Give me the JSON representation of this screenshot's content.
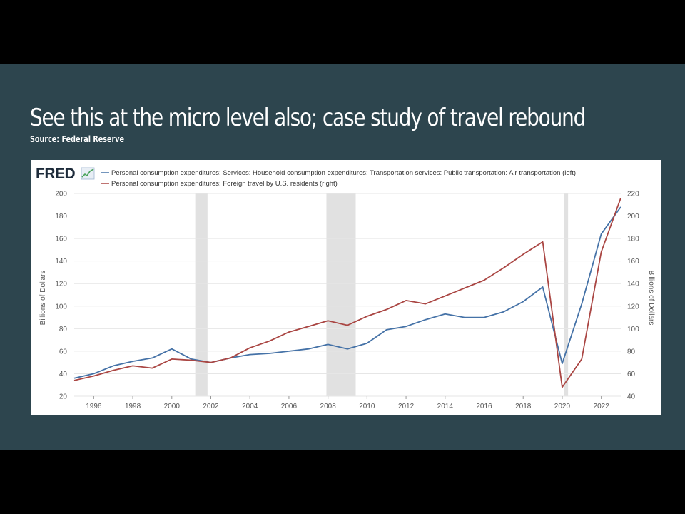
{
  "slide": {
    "title": "See this at the micro level also; case study of travel rebound",
    "source": "Source: Federal Reserve"
  },
  "brand": {
    "logo_text": "FRED",
    "icon": "line-chart-icon"
  },
  "colors": {
    "slide_background": "#2d454e",
    "air_transportation": "#4572a7",
    "foreign_travel": "#aa4643",
    "recession_shading": "#e1e1e1",
    "grid": "#e6e6e6"
  },
  "chart_data": {
    "type": "line",
    "title": "",
    "ylabel_left": "Billions of Dollars",
    "ylabel_right": "Billions of Dollars",
    "ylim_left": [
      20,
      200
    ],
    "ylim_right": [
      40,
      220
    ],
    "xlim": [
      1995,
      2023
    ],
    "x_ticks": [
      "1996",
      "1998",
      "2000",
      "2002",
      "2004",
      "2006",
      "2008",
      "2010",
      "2012",
      "2014",
      "2016",
      "2018",
      "2020",
      "2022"
    ],
    "y_ticks_left": [
      "20",
      "40",
      "60",
      "80",
      "100",
      "120",
      "140",
      "160",
      "180",
      "200"
    ],
    "y_ticks_right": [
      "40",
      "60",
      "80",
      "100",
      "120",
      "140",
      "160",
      "180",
      "200",
      "220"
    ],
    "recessions": [
      [
        2001.2,
        2001.83
      ],
      [
        2007.92,
        2009.42
      ],
      [
        2020.1,
        2020.3
      ]
    ],
    "grid": "horizontal",
    "legend_position": "top",
    "x": [
      1995,
      1996,
      1997,
      1998,
      1999,
      2000,
      2001,
      2002,
      2003,
      2004,
      2005,
      2006,
      2007,
      2008,
      2009,
      2010,
      2011,
      2012,
      2013,
      2014,
      2015,
      2016,
      2017,
      2018,
      2019,
      2020,
      2021,
      2022,
      2023
    ],
    "series": [
      {
        "name": "Personal consumption expenditures: Services: Household consumption expenditures: Transportation services: Public transportation: Air transportation (left)",
        "axis": "left",
        "color": "#4572a7",
        "values": [
          36,
          40,
          47,
          51,
          54,
          62,
          53,
          50,
          54,
          57,
          58,
          60,
          62,
          66,
          62,
          67,
          79,
          82,
          88,
          93,
          90,
          90,
          95,
          104,
          117,
          49,
          102,
          164,
          188
        ]
      },
      {
        "name": "Personal consumption expenditures: Foreign travel by U.S. residents (right)",
        "axis": "right",
        "color": "#aa4643",
        "values": [
          54,
          58,
          63,
          67,
          65,
          73,
          72,
          70,
          74,
          83,
          89,
          97,
          102,
          107,
          103,
          111,
          117,
          125,
          122,
          129,
          136,
          143,
          154,
          166,
          177,
          48,
          73,
          168,
          216
        ]
      }
    ]
  }
}
